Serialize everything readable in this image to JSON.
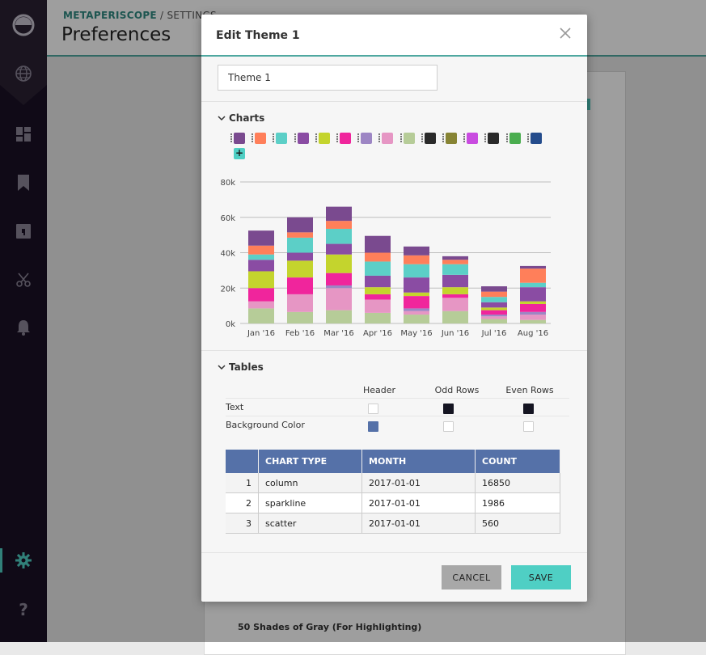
{
  "app": {
    "breadcrumb_brand": "METAPERISCOPE",
    "breadcrumb_rest": " / SETTINGS",
    "page_title": "Preferences",
    "background_section": "50 Shades of Gray (For Highlighting)"
  },
  "sidebar": {
    "icons": [
      "periscope-logo-icon",
      "globe-icon",
      "dashboard-icon",
      "bookmark-icon",
      "sql-icon",
      "scissors-icon",
      "bell-icon",
      "gear-icon",
      "help-icon"
    ]
  },
  "modal": {
    "title": "Edit Theme 1",
    "theme_name_value": "Theme 1",
    "charts_label": "Charts",
    "tables_label": "Tables",
    "cancel_label": "CANCEL",
    "save_label": "SAVE"
  },
  "palette": [
    "#7a4a8f",
    "#ff7f5a",
    "#5ccfc7",
    "#8a4ca3",
    "#c4d42d",
    "#f0259c",
    "#9d86c4",
    "#e696c4",
    "#b6cc98",
    "#2a2a2a",
    "#878434",
    "#c94be0",
    "#2a2a2a",
    "#4aad4f",
    "#244c8c"
  ],
  "chart_data": {
    "type": "bar",
    "stacked": true,
    "categories": [
      "Jan '16",
      "Feb '16",
      "Mar '16",
      "Apr '16",
      "May '16",
      "Jun '16",
      "Jul '16",
      "Aug '16"
    ],
    "ylim": [
      0,
      80000
    ],
    "ytick_labels": [
      "0k",
      "20k",
      "40k",
      "60k",
      "80k"
    ],
    "grid": true,
    "series": [
      {
        "color": "#b6cc98",
        "values": [
          8500,
          6500,
          7500,
          6000,
          5000,
          7000,
          2500,
          2000
        ]
      },
      {
        "color": "#e696c4",
        "values": [
          4000,
          10000,
          12500,
          7500,
          2000,
          7500,
          1500,
          3000
        ]
      },
      {
        "color": "#9d86c4",
        "values": [
          0,
          0,
          1500,
          0,
          1500,
          0,
          1000,
          1500
        ]
      },
      {
        "color": "#f0259c",
        "values": [
          7500,
          9500,
          7000,
          3000,
          7000,
          2000,
          2500,
          4500
        ]
      },
      {
        "color": "#c4d42d",
        "values": [
          9500,
          9500,
          10500,
          4000,
          2000,
          4000,
          1500,
          1500
        ]
      },
      {
        "color": "#8a4ca3",
        "values": [
          6500,
          4500,
          6000,
          6500,
          8500,
          7000,
          3000,
          8000
        ]
      },
      {
        "color": "#5ccfc7",
        "values": [
          3000,
          8500,
          8500,
          8000,
          7500,
          6000,
          3000,
          2500
        ]
      },
      {
        "color": "#ff7f5a",
        "values": [
          5000,
          3000,
          4500,
          5000,
          5000,
          2500,
          3000,
          8000
        ]
      },
      {
        "color": "#7a4a8f",
        "values": [
          8500,
          8500,
          8000,
          9500,
          5000,
          2000,
          3000,
          1500
        ]
      }
    ]
  },
  "tables": {
    "columns": [
      "Header",
      "Odd Rows",
      "Even Rows"
    ],
    "rows": [
      {
        "label": "Text",
        "colors": [
          "#ffffff",
          "#151522",
          "#151522"
        ]
      },
      {
        "label": "Background Color",
        "colors": [
          "#5571a8",
          "#ffffff",
          "#ffffff"
        ]
      }
    ],
    "preview": {
      "headers": [
        "",
        "CHART TYPE",
        "MONTH",
        "COUNT"
      ],
      "rows": [
        [
          "1",
          "column",
          "2017-01-01",
          "16850"
        ],
        [
          "2",
          "sparkline",
          "2017-01-01",
          "1986"
        ],
        [
          "3",
          "scatter",
          "2017-01-01",
          "560"
        ]
      ]
    }
  }
}
